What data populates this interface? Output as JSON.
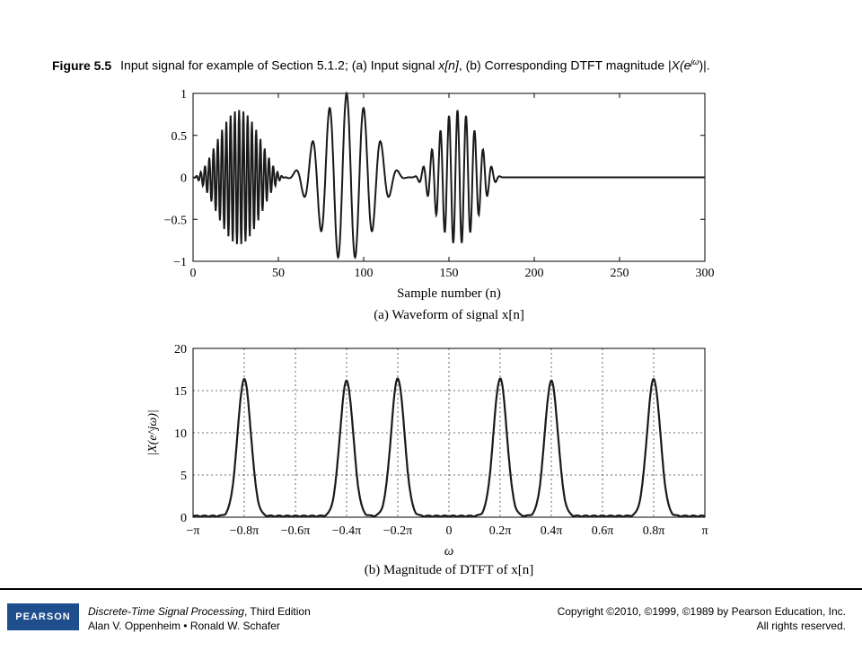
{
  "caption": {
    "figure_label": "Figure 5.5",
    "text_start": "Input signal for example of Section 5.1.2; (a) Input signal ",
    "xn": "x[n]",
    "text_mid": ", (b) Corresponding DTFT magnitude |",
    "Xe": "X(e",
    "jw": "jω",
    "text_end": ")|."
  },
  "chart_data": [
    {
      "type": "line",
      "panel": "a",
      "title": "(a) Waveform of signal x[n]",
      "xlabel": "Sample number (n)",
      "ylabel": "",
      "xlim": [
        0,
        300
      ],
      "ylim": [
        -1,
        1
      ],
      "xticks": [
        0,
        50,
        100,
        150,
        200,
        250,
        300
      ],
      "yticks": [
        1,
        0.5,
        0,
        -0.5,
        -1
      ],
      "ytick_labels": [
        "1",
        "0.5",
        "0",
        "−0.5",
        "−1"
      ],
      "grid": false,
      "series": [
        {
          "x": [
            0,
            182,
            300
          ],
          "y": [
            0,
            0,
            0
          ]
        }
      ],
      "description_segments": [
        {
          "n_start": 0,
          "n_end": 55,
          "peak_amplitude": 0.8,
          "center": 27,
          "frequency_pi": 0.8
        },
        {
          "n_start": 55,
          "n_end": 128,
          "peak_amplitude": 1.0,
          "center": 90,
          "frequency_pi": 0.2
        },
        {
          "n_start": 128,
          "n_end": 182,
          "peak_amplitude": 0.8,
          "center": 155,
          "frequency_pi": 0.4
        }
      ]
    },
    {
      "type": "line",
      "panel": "b",
      "title": "(b) Magnitude of DTFT of x[n]",
      "xlabel": "ω",
      "ylabel": "|X(e^jω)|",
      "xlim": [
        -1,
        1
      ],
      "x_units": "π",
      "ylim": [
        0,
        20
      ],
      "xtick_labels": [
        "−π",
        "−0.8π",
        "−0.6π",
        "−0.4π",
        "−0.2π",
        "0",
        "0.2π",
        "0.4π",
        "0.6π",
        "0.8π",
        "π"
      ],
      "yticks": [
        0,
        5,
        10,
        15,
        20
      ],
      "grid": true,
      "series": [
        {
          "peaks": [
            {
              "x": -0.8,
              "y": 16.2
            },
            {
              "x": -0.4,
              "y": 16.0
            },
            {
              "x": -0.2,
              "y": 16.3
            },
            {
              "x": 0.2,
              "y": 16.3
            },
            {
              "x": 0.4,
              "y": 16.0
            },
            {
              "x": 0.8,
              "y": 16.2
            }
          ]
        }
      ]
    }
  ],
  "footer": {
    "logo": "PEARSON",
    "book_title": "Discrete-Time Signal Processing",
    "book_edition": ", Third Edition",
    "authors": "Alan V. Oppenheim • Ronald W. Schafer",
    "copyright": "Copyright ©2010, ©1999, ©1989 by Pearson Education, Inc.",
    "rights": "All rights reserved."
  }
}
